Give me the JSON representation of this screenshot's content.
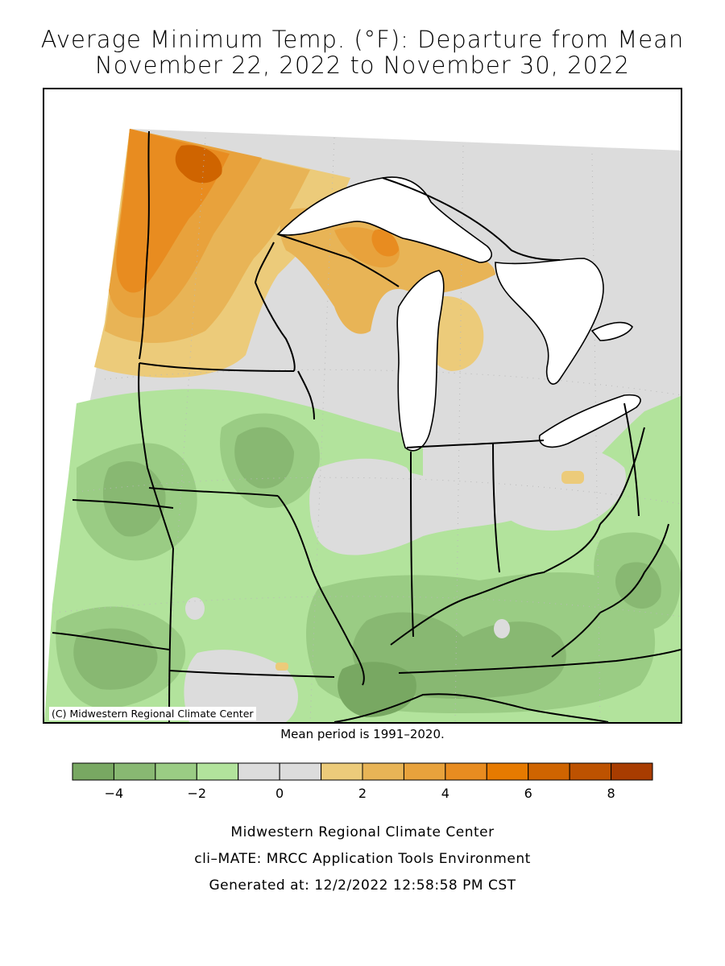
{
  "title": {
    "line1": "Average Minimum Temp. (°F): Departure from Mean",
    "line2": "November 22, 2022 to November 30, 2022"
  },
  "map": {
    "copyright": "(C) Midwestern Regional Climate Center",
    "mean_period_note": "Mean period is 1991–2020."
  },
  "legend": {
    "bins": [
      {
        "from": -5,
        "to": -4,
        "color": "#78a862"
      },
      {
        "from": -4,
        "to": -3,
        "color": "#88b872"
      },
      {
        "from": -3,
        "to": -2,
        "color": "#9acc84"
      },
      {
        "from": -2,
        "to": -1,
        "color": "#b2e39c"
      },
      {
        "from": -1,
        "to": 0,
        "color": "#dcdcdc"
      },
      {
        "from": 0,
        "to": 1,
        "color": "#dcdcdc"
      },
      {
        "from": 1,
        "to": 2,
        "color": "#eccb7a"
      },
      {
        "from": 2,
        "to": 3,
        "color": "#e8b456"
      },
      {
        "from": 3,
        "to": 4,
        "color": "#e8a23c"
      },
      {
        "from": 4,
        "to": 5,
        "color": "#e88c20"
      },
      {
        "from": 5,
        "to": 6,
        "color": "#e67a00"
      },
      {
        "from": 6,
        "to": 7,
        "color": "#cf6400"
      },
      {
        "from": 7,
        "to": 8,
        "color": "#bd5200"
      },
      {
        "from": 8,
        "to": 9,
        "color": "#a83c00"
      }
    ],
    "tick_labels": [
      "−4",
      "−2",
      "0",
      "2",
      "4",
      "6",
      "8"
    ],
    "tick_values": [
      -4,
      -2,
      0,
      2,
      4,
      6,
      8
    ]
  },
  "footer": {
    "line1": "Midwestern Regional Climate Center",
    "line2": "cli–MATE: MRCC Application Tools Environment",
    "line3": "Generated at: 12/2/2022 12:58:58 PM CST"
  }
}
